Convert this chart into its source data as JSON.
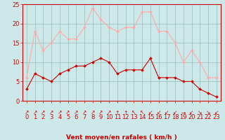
{
  "hours": [
    0,
    1,
    2,
    3,
    4,
    5,
    6,
    7,
    8,
    9,
    10,
    11,
    12,
    13,
    14,
    15,
    16,
    17,
    18,
    19,
    20,
    21,
    22,
    23
  ],
  "wind_avg": [
    3,
    7,
    6,
    5,
    7,
    8,
    9,
    9,
    10,
    11,
    10,
    7,
    8,
    8,
    8,
    11,
    6,
    6,
    6,
    5,
    5,
    3,
    2,
    1
  ],
  "wind_gust": [
    6,
    18,
    13,
    15,
    18,
    16,
    16,
    19,
    24,
    21,
    19,
    18,
    19,
    19,
    23,
    23,
    18,
    18,
    15,
    10,
    13,
    10,
    6,
    6
  ],
  "avg_color": "#cc0000",
  "gust_color": "#ffaaaa",
  "bg_color": "#cce8e8",
  "grid_color": "#99bbbb",
  "axis_color": "#cc0000",
  "xlabel": "Vent moyen/en rafales ( km/h )",
  "ylim": [
    0,
    25
  ],
  "yticks": [
    0,
    5,
    10,
    15,
    20,
    25
  ],
  "label_fontsize": 6.5,
  "tick_fontsize": 6.0,
  "arrow_chars": [
    "↗",
    "↗",
    "↗",
    "↗",
    "↗",
    "↗",
    "↗",
    "↗",
    "↗",
    "↗",
    "↗",
    "↑",
    "↑",
    "↖",
    "↖",
    "↙",
    "↙",
    "↙",
    "↙",
    "→",
    "↙",
    "↘",
    "↘",
    "↙"
  ]
}
